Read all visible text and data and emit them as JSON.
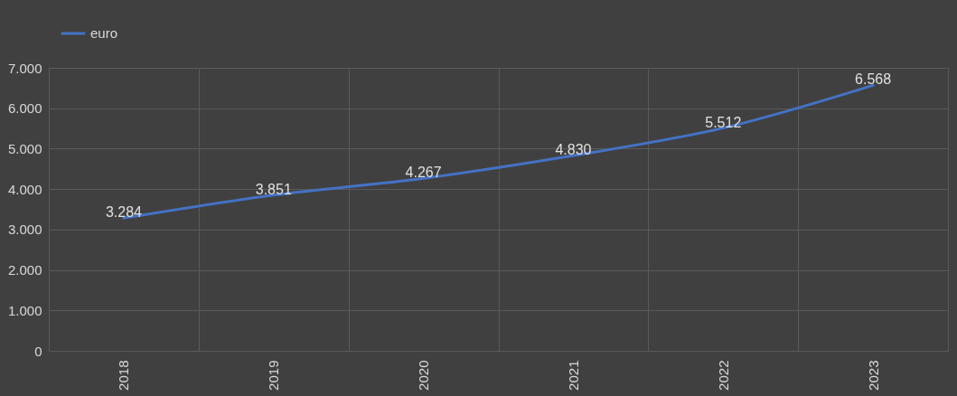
{
  "chart_data": {
    "type": "line",
    "categories": [
      "2018",
      "2019",
      "2020",
      "2021",
      "2022",
      "2023"
    ],
    "series": [
      {
        "name": "euro",
        "color": "#4472c4",
        "values": [
          3284,
          3851,
          4267,
          4830,
          5512,
          6568
        ],
        "value_labels": [
          "3.284",
          "3.851",
          "4.267",
          "4.830",
          "5.512",
          "6.568"
        ]
      }
    ],
    "ylim": [
      0,
      7000
    ],
    "yticks": [
      {
        "value": 0,
        "label": "0"
      },
      {
        "value": 1000,
        "label": "1.000"
      },
      {
        "value": 2000,
        "label": "2.000"
      },
      {
        "value": 3000,
        "label": "3.000"
      },
      {
        "value": 4000,
        "label": "4.000"
      },
      {
        "value": 5000,
        "label": "5.000"
      },
      {
        "value": 6000,
        "label": "6.000"
      },
      {
        "value": 7000,
        "label": "7.000"
      }
    ],
    "grid": true,
    "legend": "top",
    "marker": "none",
    "line_style": "solid"
  }
}
